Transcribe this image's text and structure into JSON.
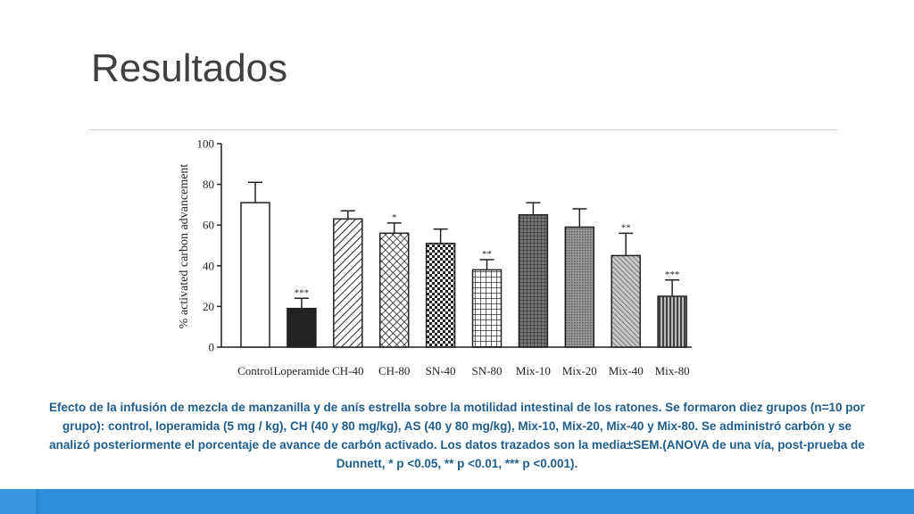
{
  "slide": {
    "title": "Resultados"
  },
  "caption": "Efecto de la infusión de mezcla de manzanilla y de anís estrella sobre la motilidad intestinal de los ratones. Se formaron diez grupos (n=10 por grupo): control, loperamida (5 mg / kg), CH (40 y 80 mg/kg), AS (40 y 80 mg/kg), Mix-10, Mix-20, Mix-40 y Mix-80. Se administró carbón y se analizó posteriormente el porcentaje de avance de carbón activado. Los datos trazados son la media±SEM.(ANOVA de una vía, post-prueba de Dunnett, * p <0.05, ** p <0.01, *** p <0.001).",
  "chart_data": {
    "type": "bar",
    "title": "",
    "xlabel": "",
    "ylabel": "% activated carbon advancement",
    "ylim": [
      0,
      100
    ],
    "yticks": [
      "0",
      "20",
      "40",
      "60",
      "80",
      "100"
    ],
    "categories": [
      "Control",
      "Loperamide",
      "CH-40",
      "CH-80",
      "SN-40",
      "SN-80",
      "Mix-10",
      "Mix-20",
      "Mix-40",
      "Mix-80"
    ],
    "values": [
      71,
      19,
      63,
      56,
      51,
      38,
      65,
      59,
      45,
      25
    ],
    "error": [
      10,
      5,
      4,
      5,
      7,
      5,
      6,
      9,
      11,
      8
    ],
    "significance": [
      "",
      "***",
      "",
      "*",
      "",
      "**",
      "",
      "",
      "**",
      "***"
    ],
    "fills": [
      "open",
      "solid",
      "diagonal-hatch",
      "crosshatch",
      "checker",
      "grid",
      "fine-grid",
      "dense-dots",
      "fine-diagonal",
      "vertical-stripes"
    ]
  }
}
